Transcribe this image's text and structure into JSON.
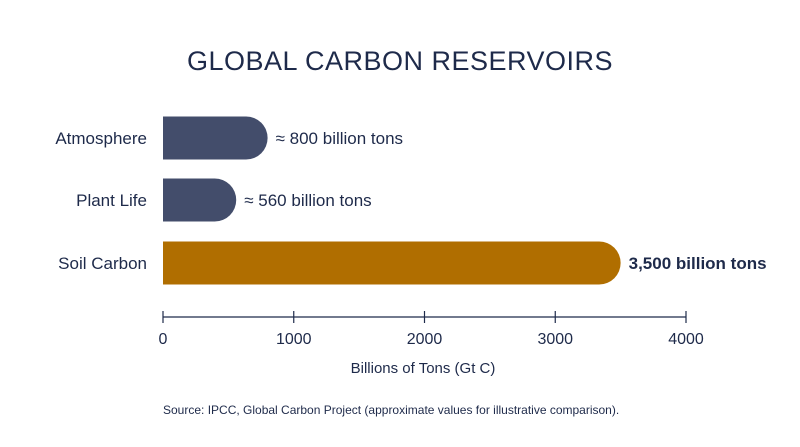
{
  "chart_data": {
    "type": "bar",
    "orientation": "horizontal",
    "title": "GLOBAL CARBON RESERVOIRS",
    "categories": [
      "Atmosphere",
      "Plant Life",
      "Soil Carbon"
    ],
    "values": [
      800,
      560,
      3500
    ],
    "value_labels": [
      "≈ 800 billion tons",
      "≈ 560 billion tons",
      "3,500 billion tons"
    ],
    "bar_colors": [
      "#434d6b",
      "#434d6b",
      "#b06e00"
    ],
    "xlabel": "Billions of Tons (Gt C)",
    "ylabel": "",
    "xlim": [
      0,
      4000
    ],
    "xticks": [
      0,
      1000,
      2000,
      3000,
      4000
    ],
    "grid": false,
    "source": "Source: IPCC, Global Carbon Project (approximate values for illustrative comparison)."
  }
}
